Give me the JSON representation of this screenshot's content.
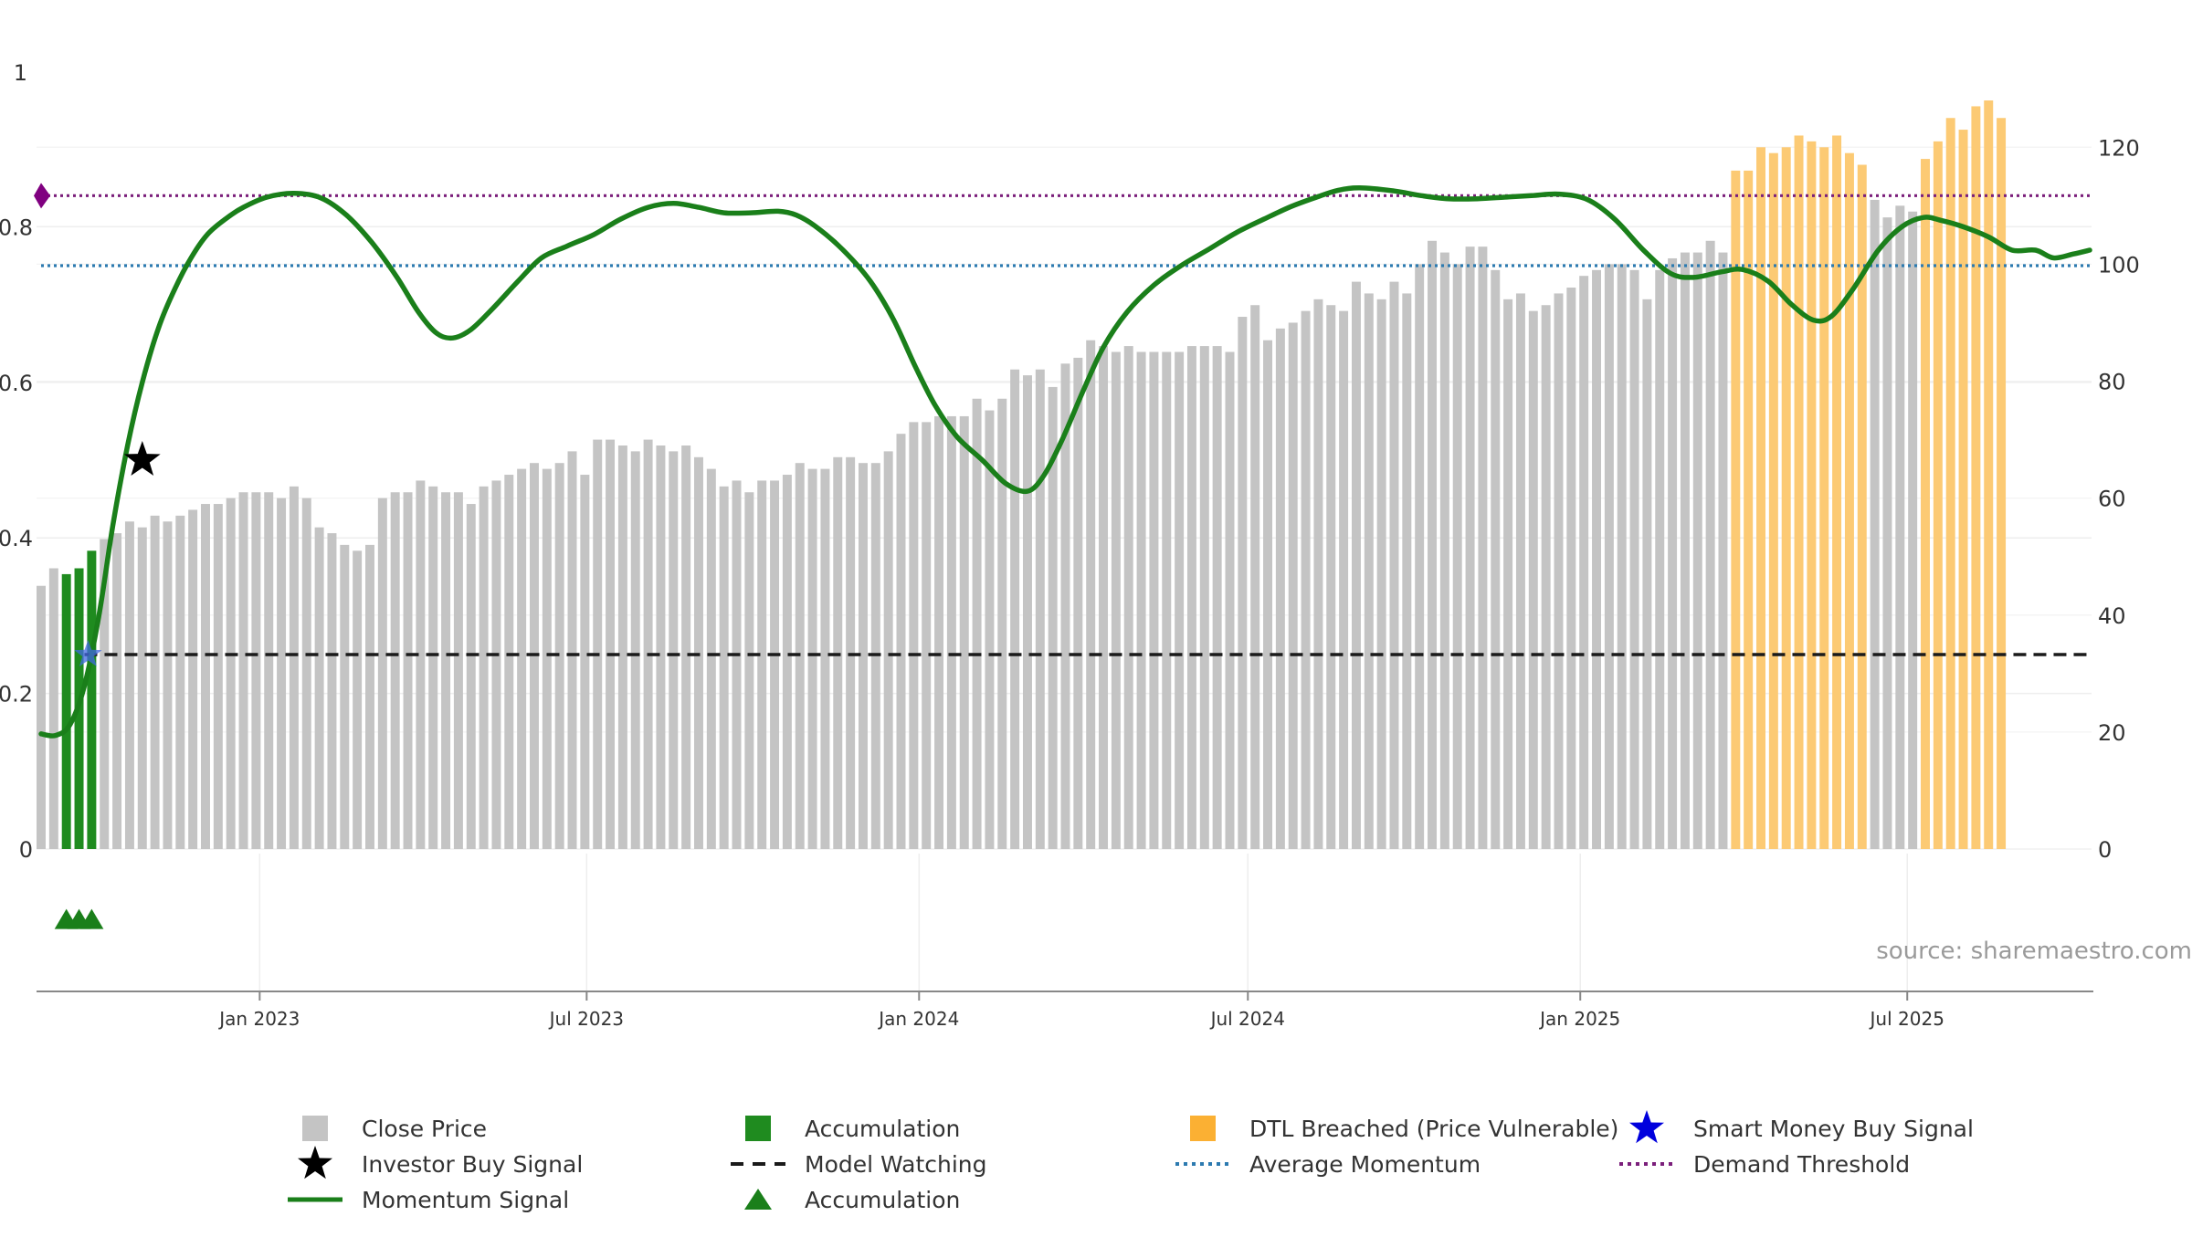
{
  "chart_data": {
    "type": "bar",
    "source_text": "source: sharemaestro.com",
    "left_axis": {
      "range": [
        0,
        1.0
      ],
      "ticks": [
        0,
        0.2,
        0.4,
        0.6,
        0.8
      ],
      "tick_labels": [
        "0",
        "0.2",
        "0.4",
        "0.6",
        "0.8"
      ],
      "top_label": "1"
    },
    "right_axis": {
      "range": [
        0,
        133
      ],
      "ticks": [
        0,
        20,
        40,
        60,
        80,
        100,
        120
      ],
      "tick_labels": [
        "0",
        "20",
        "40",
        "60",
        "80",
        "100",
        "120"
      ]
    },
    "x_axis": {
      "start": "2022-09-02",
      "end": "2025-10-10",
      "tick_dates": [
        "2023-01-01",
        "2023-07-01",
        "2024-01-01",
        "2024-07-01",
        "2025-01-01",
        "2025-07-01"
      ],
      "tick_labels": [
        "Jan 2023",
        "Jul 2023",
        "Jan 2024",
        "Jul 2024",
        "Jan 2025",
        "Jul 2025"
      ]
    },
    "price_bars": {
      "start": "2022-09-02",
      "interval_days": 7,
      "values": [
        45,
        48,
        47,
        48,
        51,
        53,
        54,
        56,
        55,
        57,
        56,
        57,
        58,
        59,
        59,
        60,
        61,
        61,
        61,
        60,
        62,
        60,
        55,
        54,
        52,
        51,
        52,
        60,
        61,
        61,
        63,
        62,
        61,
        61,
        59,
        62,
        63,
        64,
        65,
        66,
        65,
        66,
        68,
        64,
        70,
        70,
        69,
        68,
        70,
        69,
        68,
        69,
        67,
        65,
        62,
        63,
        61,
        63,
        63,
        64,
        66,
        65,
        65,
        67,
        67,
        66,
        66,
        68,
        71,
        73,
        73,
        74,
        74,
        74,
        77,
        75,
        77,
        82,
        81,
        82,
        79,
        83,
        84,
        87,
        86,
        85,
        86,
        85,
        85,
        85,
        85,
        86,
        86,
        86,
        85,
        91,
        93,
        87,
        89,
        90,
        92,
        94,
        93,
        92,
        97,
        95,
        94,
        97,
        95,
        100,
        104,
        102,
        100,
        103,
        103,
        99,
        94,
        95,
        92,
        93,
        95,
        96,
        98,
        99,
        100,
        100,
        99,
        94,
        99,
        101,
        102,
        102,
        104,
        102,
        116,
        116,
        120,
        119,
        120,
        122,
        121,
        120,
        122,
        119,
        117,
        111,
        108,
        110,
        109,
        118,
        121,
        125,
        123,
        127,
        128,
        125
      ],
      "categories": [
        "close",
        "close",
        "accumulation",
        "accumulation",
        "accumulation",
        "close",
        "close",
        "close",
        "close",
        "close",
        "close",
        "close",
        "close",
        "close",
        "close",
        "close",
        "close",
        "close",
        "close",
        "close",
        "close",
        "close",
        "close",
        "close",
        "close",
        "close",
        "close",
        "close",
        "close",
        "close",
        "close",
        "close",
        "close",
        "close",
        "close",
        "close",
        "close",
        "close",
        "close",
        "close",
        "close",
        "close",
        "close",
        "close",
        "close",
        "close",
        "close",
        "close",
        "close",
        "close",
        "close",
        "close",
        "close",
        "close",
        "close",
        "close",
        "close",
        "close",
        "close",
        "close",
        "close",
        "close",
        "close",
        "close",
        "close",
        "close",
        "close",
        "close",
        "close",
        "close",
        "close",
        "close",
        "close",
        "close",
        "close",
        "close",
        "close",
        "close",
        "close",
        "close",
        "close",
        "close",
        "close",
        "close",
        "close",
        "close",
        "close",
        "close",
        "close",
        "close",
        "close",
        "close",
        "close",
        "close",
        "close",
        "close",
        "close",
        "close",
        "close",
        "close",
        "close",
        "close",
        "close",
        "close",
        "close",
        "close",
        "close",
        "close",
        "close",
        "close",
        "close",
        "close",
        "close",
        "close",
        "close",
        "close",
        "close",
        "close",
        "close",
        "close",
        "close",
        "close",
        "close",
        "close",
        "close",
        "close",
        "close",
        "close",
        "close",
        "close",
        "close",
        "close",
        "close",
        "close",
        "dtl",
        "dtl",
        "dtl",
        "dtl",
        "dtl",
        "dtl",
        "dtl",
        "dtl",
        "dtl",
        "dtl",
        "dtl",
        "close",
        "close",
        "close",
        "close",
        "dtl",
        "dtl",
        "dtl",
        "dtl",
        "dtl",
        "dtl",
        "dtl"
      ]
    },
    "momentum_line": {
      "name": "Momentum Signal",
      "color": "#1a7f1a",
      "points": [
        [
          "2022-09-02",
          0.148
        ],
        [
          "2022-09-10",
          0.146
        ],
        [
          "2022-09-18",
          0.16
        ],
        [
          "2022-09-26",
          0.21
        ],
        [
          "2022-10-04",
          0.3
        ],
        [
          "2022-10-12",
          0.42
        ],
        [
          "2022-10-20",
          0.52
        ],
        [
          "2022-10-28",
          0.6
        ],
        [
          "2022-11-06",
          0.67
        ],
        [
          "2022-11-15",
          0.72
        ],
        [
          "2022-11-24",
          0.76
        ],
        [
          "2022-12-03",
          0.79
        ],
        [
          "2022-12-13",
          0.81
        ],
        [
          "2022-12-23",
          0.825
        ],
        [
          "2023-01-05",
          0.838
        ],
        [
          "2023-01-20",
          0.843
        ],
        [
          "2023-02-04",
          0.837
        ],
        [
          "2023-02-18",
          0.815
        ],
        [
          "2023-03-04",
          0.78
        ],
        [
          "2023-03-18",
          0.735
        ],
        [
          "2023-03-30",
          0.69
        ],
        [
          "2023-04-09",
          0.663
        ],
        [
          "2023-04-18",
          0.657
        ],
        [
          "2023-04-28",
          0.668
        ],
        [
          "2023-05-10",
          0.695
        ],
        [
          "2023-05-24",
          0.73
        ],
        [
          "2023-06-06",
          0.76
        ],
        [
          "2023-06-20",
          0.775
        ],
        [
          "2023-07-05",
          0.79
        ],
        [
          "2023-07-20",
          0.81
        ],
        [
          "2023-08-04",
          0.825
        ],
        [
          "2023-08-18",
          0.83
        ],
        [
          "2023-09-01",
          0.825
        ],
        [
          "2023-09-15",
          0.818
        ],
        [
          "2023-09-30",
          0.818
        ],
        [
          "2023-10-15",
          0.82
        ],
        [
          "2023-10-25",
          0.815
        ],
        [
          "2023-11-05",
          0.8
        ],
        [
          "2023-11-20",
          0.77
        ],
        [
          "2023-12-05",
          0.73
        ],
        [
          "2023-12-18",
          0.68
        ],
        [
          "2023-12-30",
          0.62
        ],
        [
          "2024-01-10",
          0.57
        ],
        [
          "2024-01-22",
          0.53
        ],
        [
          "2024-02-05",
          0.5
        ],
        [
          "2024-02-18",
          0.47
        ],
        [
          "2024-03-01",
          0.46
        ],
        [
          "2024-03-10",
          0.48
        ],
        [
          "2024-03-20",
          0.525
        ],
        [
          "2024-04-01",
          0.59
        ],
        [
          "2024-04-12",
          0.645
        ],
        [
          "2024-04-25",
          0.69
        ],
        [
          "2024-05-10",
          0.725
        ],
        [
          "2024-05-25",
          0.75
        ],
        [
          "2024-06-10",
          0.772
        ],
        [
          "2024-06-25",
          0.793
        ],
        [
          "2024-07-10",
          0.81
        ],
        [
          "2024-07-25",
          0.826
        ],
        [
          "2024-08-08",
          0.838
        ],
        [
          "2024-08-20",
          0.847
        ],
        [
          "2024-09-01",
          0.85
        ],
        [
          "2024-09-20",
          0.846
        ],
        [
          "2024-10-05",
          0.84
        ],
        [
          "2024-10-20",
          0.836
        ],
        [
          "2024-11-05",
          0.836
        ],
        [
          "2024-11-20",
          0.838
        ],
        [
          "2024-12-05",
          0.84
        ],
        [
          "2024-12-20",
          0.842
        ],
        [
          "2025-01-05",
          0.835
        ],
        [
          "2025-01-20",
          0.81
        ],
        [
          "2025-02-05",
          0.77
        ],
        [
          "2025-02-20",
          0.74
        ],
        [
          "2025-03-05",
          0.735
        ],
        [
          "2025-03-20",
          0.742
        ],
        [
          "2025-04-01",
          0.745
        ],
        [
          "2025-04-15",
          0.73
        ],
        [
          "2025-04-28",
          0.7
        ],
        [
          "2025-05-10",
          0.68
        ],
        [
          "2025-05-20",
          0.685
        ],
        [
          "2025-06-01",
          0.72
        ],
        [
          "2025-06-15",
          0.77
        ],
        [
          "2025-06-28",
          0.8
        ],
        [
          "2025-07-10",
          0.812
        ],
        [
          "2025-07-20",
          0.808
        ],
        [
          "2025-08-01",
          0.8
        ],
        [
          "2025-08-15",
          0.787
        ],
        [
          "2025-08-28",
          0.77
        ],
        [
          "2025-09-10",
          0.77
        ],
        [
          "2025-09-20",
          0.76
        ],
        [
          "2025-10-01",
          0.765
        ],
        [
          "2025-10-10",
          0.77
        ]
      ]
    },
    "reference_lines": [
      {
        "name": "Demand Threshold",
        "value": 0.84,
        "color": "#7b1f7b",
        "style": "dotted"
      },
      {
        "name": "Average Momentum",
        "value": 0.75,
        "color": "#2c7ab0",
        "style": "dotted"
      },
      {
        "name": "Model Watching",
        "value": 0.25,
        "color": "#1a1a1a",
        "style": "dashed",
        "start": "2022-09-26"
      }
    ],
    "markers": [
      {
        "type": "demand-threshold-marker",
        "date": "2022-09-02",
        "value": 0.84,
        "color": "#800080"
      },
      {
        "type": "investor-buy-signal",
        "date": "2022-10-28",
        "value": 0.5,
        "color": "#000000"
      },
      {
        "type": "smart-money-buy-signal",
        "date": "2022-09-28",
        "value": 0.25,
        "color": "#4169e1"
      },
      {
        "type": "accumulation-triangle",
        "date": "2022-09-16",
        "value": -0.09,
        "color": "#1a7f1a"
      },
      {
        "type": "accumulation-triangle",
        "date": "2022-09-23",
        "value": -0.09,
        "color": "#1a7f1a"
      },
      {
        "type": "accumulation-triangle",
        "date": "2022-09-30",
        "value": -0.09,
        "color": "#1a7f1a"
      }
    ],
    "colors": {
      "close": "#c4c4c4",
      "accumulation": "#1f8b1f",
      "dtl": "#fcca74"
    },
    "legend": [
      {
        "label": "Close Price",
        "symbol": "square-gray"
      },
      {
        "label": "Accumulation",
        "symbol": "square-green"
      },
      {
        "label": "DTL Breached (Price Vulnerable)",
        "symbol": "square-orange"
      },
      {
        "label": "Smart Money Buy Signal",
        "symbol": "star-blue"
      },
      {
        "label": "Investor Buy Signal",
        "symbol": "star-black"
      },
      {
        "label": "Model Watching",
        "symbol": "dash-black"
      },
      {
        "label": "Average Momentum",
        "symbol": "dot-blue"
      },
      {
        "label": "Demand Threshold",
        "symbol": "dot-purple"
      },
      {
        "label": "Momentum Signal",
        "symbol": "line-green"
      },
      {
        "label": "Accumulation",
        "symbol": "triangle-green"
      }
    ]
  }
}
